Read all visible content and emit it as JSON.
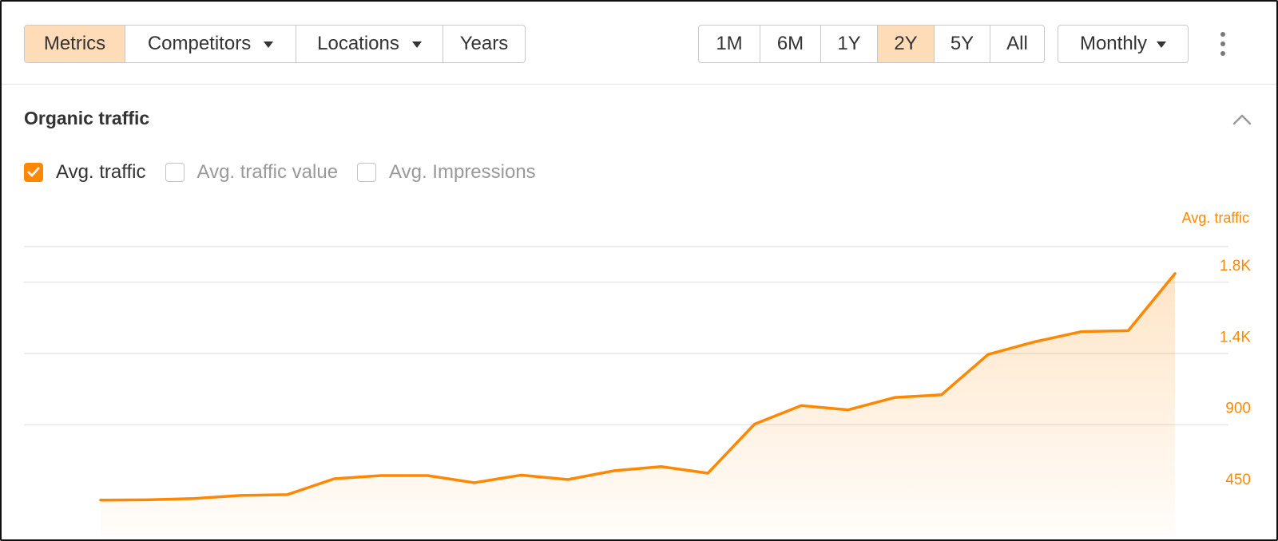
{
  "toolbar": {
    "view_tabs": [
      {
        "label": "Metrics",
        "active": true,
        "dropdown": false
      },
      {
        "label": "Competitors",
        "active": false,
        "dropdown": true
      },
      {
        "label": "Locations",
        "active": false,
        "dropdown": true
      },
      {
        "label": "Years",
        "active": false,
        "dropdown": false
      }
    ],
    "ranges": [
      {
        "label": "1M",
        "active": false
      },
      {
        "label": "6M",
        "active": false
      },
      {
        "label": "1Y",
        "active": false
      },
      {
        "label": "2Y",
        "active": true
      },
      {
        "label": "5Y",
        "active": false
      },
      {
        "label": "All",
        "active": false
      }
    ],
    "interval": "Monthly",
    "more_icon": "kebab-menu-icon"
  },
  "section": {
    "title": "Organic traffic",
    "collapse_icon": "chevron-up-icon"
  },
  "metrics": [
    {
      "label": "Avg. traffic",
      "checked": true
    },
    {
      "label": "Avg. traffic value",
      "checked": false
    },
    {
      "label": "Avg. Impressions",
      "checked": false
    }
  ],
  "colors": {
    "accent": "#ff8800",
    "active_bg": "#ffdcb8",
    "grid": "#e6e6e6"
  },
  "chart_data": {
    "type": "area",
    "ylabel": "Avg. traffic",
    "y_ticks": [
      {
        "label": "450",
        "value": 450
      },
      {
        "label": "900",
        "value": 900
      },
      {
        "label": "1.4K",
        "value": 1350
      },
      {
        "label": "1.8K",
        "value": 1800
      }
    ],
    "ylim": [
      0,
      1800
    ],
    "grid": true,
    "axis_side": "right",
    "series": [
      {
        "values": [
          310,
          312,
          320,
          340,
          345,
          445,
          465,
          465,
          420,
          468,
          440,
          496,
          522,
          480,
          790,
          907,
          880,
          958,
          975,
          1230,
          1310,
          1374,
          1380,
          1740
        ]
      }
    ]
  }
}
